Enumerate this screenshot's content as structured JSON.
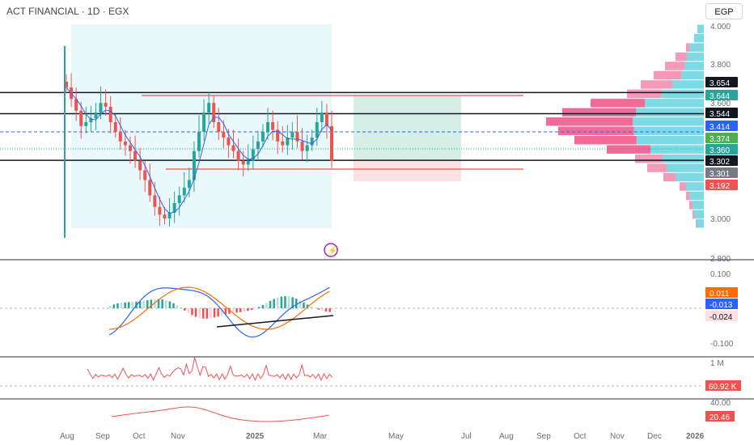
{
  "header": {
    "title": "ACT FINANCIAL · 1D · EGX",
    "currency": "EGP"
  },
  "colors": {
    "up": "#26a69a",
    "down": "#ef5350",
    "blue": "#2962ff",
    "orange": "#ff6d00",
    "cyan": "#7dd9e4",
    "pink": "#f06292",
    "range_fill": "#e9f8fb",
    "target_fill": "#d5efe7",
    "stop_fill": "#fce0e2"
  },
  "chart_data": [
    {
      "type": "candlestick",
      "name": "price",
      "x_ticks": [
        "Aug",
        "Sep",
        "Oct",
        "Nov",
        "2025",
        "Mar",
        "May",
        "Jul",
        "Aug",
        "Sep",
        "Oct",
        "Nov",
        "Dec",
        "2026"
      ],
      "y_ticks": [
        "4.000",
        "3.800",
        "3.600",
        "3.000",
        "2.800"
      ],
      "ylim": [
        2.8,
        4.05
      ],
      "horizontal_lines": [
        3.654,
        3.544,
        3.302
      ],
      "price_tags": [
        {
          "value": "3.654",
          "bg": "#131722",
          "fg": "#ffffff"
        },
        {
          "value": "3.644",
          "bg": "#26a69a",
          "fg": "#ffffff"
        },
        {
          "value": "3.544",
          "bg": "#131722",
          "fg": "#ffffff"
        },
        {
          "value": "3.414",
          "bg": "#2962ff",
          "fg": "#ffffff"
        },
        {
          "value": "3.374",
          "bg": "#4caf50",
          "fg": "#ffffff"
        },
        {
          "value": "3.360",
          "bg": "#26a69a",
          "fg": "#ffffff"
        },
        {
          "value": "3.302",
          "bg": "#131722",
          "fg": "#ffffff"
        },
        {
          "value": "3.301",
          "bg": "#787b86",
          "fg": "#ffffff"
        },
        {
          "value": "3.192",
          "bg": "#ef5350",
          "fg": "#ffffff"
        }
      ],
      "close_series": [
        3.68,
        3.62,
        3.56,
        3.48,
        3.5,
        3.52,
        3.55,
        3.6,
        3.58,
        3.5,
        3.45,
        3.4,
        3.38,
        3.35,
        3.3,
        3.25,
        3.2,
        3.12,
        3.06,
        3.02,
        3.0,
        3.03,
        3.08,
        3.12,
        3.16,
        3.2,
        3.35,
        3.45,
        3.55,
        3.6,
        3.5,
        3.45,
        3.42,
        3.38,
        3.35,
        3.3,
        3.28,
        3.3,
        3.36,
        3.4,
        3.45,
        3.5,
        3.46,
        3.4,
        3.38,
        3.42,
        3.45,
        3.4,
        3.35,
        3.38,
        3.42,
        3.5,
        3.55,
        3.48,
        3.3
      ],
      "volume_profile_levels": 22
    },
    {
      "type": "line",
      "name": "macd",
      "y_ticks": [
        "0.100",
        "-0.100"
      ],
      "tags": [
        {
          "value": "0.011",
          "bg": "#ff6d00",
          "fg": "#ffffff"
        },
        {
          "value": "-0.013",
          "bg": "#2962ff",
          "fg": "#ffffff"
        },
        {
          "value": "-0.024",
          "bg": "#fce0e2",
          "fg": "#131722"
        }
      ]
    },
    {
      "type": "line",
      "name": "volume_indicator",
      "y_ticks": [
        "1 M"
      ],
      "tags": [
        {
          "value": "60.92 K",
          "bg": "#ef5350",
          "fg": "#ffffff"
        }
      ]
    },
    {
      "type": "line",
      "name": "rsi",
      "y_ticks": [
        "40.00"
      ],
      "tags": [
        {
          "value": "20.46",
          "bg": "#ef5350",
          "fg": "#ffffff"
        }
      ]
    }
  ]
}
